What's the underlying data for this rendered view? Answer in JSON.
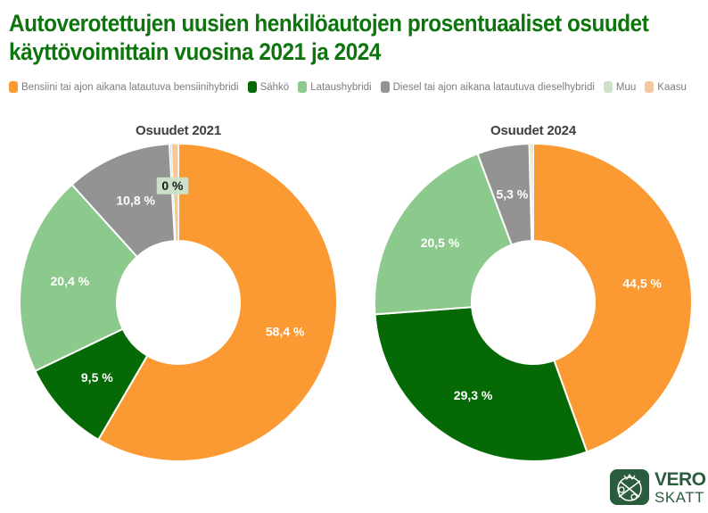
{
  "title": "Autoverotettujen uusien henkilöautojen prosentuaaliset osuudet\nkäyttövoimittain vuosina 2021 ja 2024",
  "colors": {
    "title_green": "#0e750e",
    "chart_title_gray": "#3f3f3f",
    "legend_text_gray": "#7d7d7d",
    "bensiini_orange": "#fb9933",
    "sahko_dark_green": "#056a05",
    "lataushybridi_light_green": "#8cc98c",
    "diesel_gray": "#939393",
    "muu_pale_green": "#cde0c8",
    "kaasu_pale_orange": "#f2ca9e",
    "logo_green": "#2b5c3d",
    "slice_label_white": "#ffffff",
    "outside_label_text": "#1a1a1a"
  },
  "legend": {
    "items": [
      {
        "label": "Bensiini tai ajon aikana latautuva bensiinihybridi",
        "color": "#fb9933"
      },
      {
        "label": "Sähkö",
        "color": "#056a05"
      },
      {
        "label": "Lataushybridi",
        "color": "#8cc98c"
      },
      {
        "label": "Diesel tai ajon aikana latautuva dieselhybridi",
        "color": "#939393"
      },
      {
        "label": "Muu",
        "color": "#cde0c8"
      },
      {
        "label": "Kaasu",
        "color": "#f2ca9e"
      }
    ]
  },
  "chart_data": [
    {
      "type": "pie",
      "donut": true,
      "title": "Osuudet 2021",
      "start_angle_deg": 0,
      "direction": "clockwise",
      "inner_radius_ratio": 0.39,
      "legend_position": "top",
      "slices": [
        {
          "name": "Bensiini tai ajon aikana latautuva bensiinihybridi",
          "value": 58.4,
          "label": "58,4 %",
          "color": "#fb9933",
          "label_placement": "inside"
        },
        {
          "name": "Sähkö",
          "value": 9.5,
          "label": "9,5 %",
          "color": "#056a05",
          "label_placement": "inside"
        },
        {
          "name": "Lataushybridi",
          "value": 20.4,
          "label": "20,4 %",
          "color": "#8cc98c",
          "label_placement": "inside"
        },
        {
          "name": "Diesel tai ajon aikana latautuva dieselhybridi",
          "value": 10.8,
          "label": "10,8 %",
          "color": "#939393",
          "label_placement": "inside"
        },
        {
          "name": "Muu",
          "value": 0.2,
          "label": "0 %",
          "color": "#cde0c8",
          "label_placement": "outside"
        },
        {
          "name": "Kaasu",
          "value": 0.7,
          "label": "",
          "color": "#f2ca9e",
          "label_placement": "none"
        }
      ]
    },
    {
      "type": "pie",
      "donut": true,
      "title": "Osuudet 2024",
      "start_angle_deg": 0,
      "direction": "clockwise",
      "inner_radius_ratio": 0.39,
      "legend_position": "top",
      "slices": [
        {
          "name": "Bensiini tai ajon aikana latautuva bensiinihybridi",
          "value": 44.5,
          "label": "44,5 %",
          "color": "#fb9933",
          "label_placement": "inside"
        },
        {
          "name": "Sähkö",
          "value": 29.3,
          "label": "29,3 %",
          "color": "#056a05",
          "label_placement": "inside"
        },
        {
          "name": "Lataushybridi",
          "value": 20.5,
          "label": "20,5 %",
          "color": "#8cc98c",
          "label_placement": "inside"
        },
        {
          "name": "Diesel tai ajon aikana latautuva dieselhybridi",
          "value": 5.3,
          "label": "5,3 %",
          "color": "#939393",
          "label_placement": "inside"
        },
        {
          "name": "Muu",
          "value": 0.2,
          "label": "",
          "color": "#cde0c8",
          "label_placement": "none"
        },
        {
          "name": "Kaasu",
          "value": 0.2,
          "label": "",
          "color": "#f2ca9e",
          "label_placement": "none"
        }
      ]
    }
  ],
  "logo": {
    "line1": "VERO",
    "line2": "SKATT"
  }
}
